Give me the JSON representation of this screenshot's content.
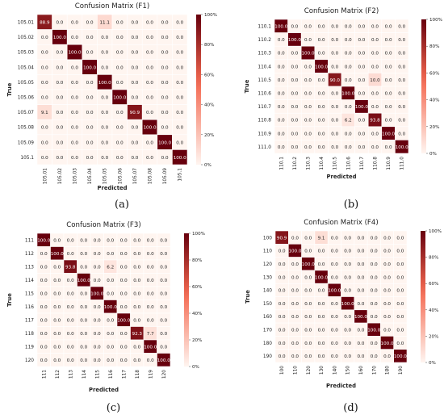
{
  "colors": {
    "low": "#fff5f0",
    "mid": "#f4684f",
    "high": "#67000d",
    "text_dark": "#222222",
    "text_light": "#ffffff"
  },
  "chart_data": [
    {
      "type": "heatmap",
      "title": "Confusion Matrix (F1)",
      "xlabel": "Predicted",
      "ylabel": "True",
      "panel_label": "(a)",
      "rows": [
        "105.01",
        "105.02",
        "105.03",
        "105.04",
        "105.05",
        "105.06",
        "105.07",
        "105.08",
        "105.09",
        "105.1"
      ],
      "cols": [
        "105.01",
        "105.02",
        "105.03",
        "105.04",
        "105.05",
        "105.06",
        "105.07",
        "105.08",
        "105.09",
        "105.1"
      ],
      "colorbar_ticks": [
        "0%",
        "20%",
        "40%",
        "60%",
        "80%",
        "100%"
      ],
      "vmin": 0,
      "vmax": 100,
      "values": [
        [
          88.9,
          0,
          0,
          0,
          11.1,
          0,
          0,
          0,
          0,
          0
        ],
        [
          0,
          100,
          0,
          0,
          0,
          0,
          0,
          0,
          0,
          0
        ],
        [
          0,
          0,
          100,
          0,
          0,
          0,
          0,
          0,
          0,
          0
        ],
        [
          0,
          0,
          0,
          100,
          0,
          0,
          0,
          0,
          0,
          0
        ],
        [
          0,
          0,
          0,
          0,
          100,
          0,
          0,
          0,
          0,
          0
        ],
        [
          0,
          0,
          0,
          0,
          0,
          100,
          0,
          0,
          0,
          0
        ],
        [
          9.1,
          0,
          0,
          0,
          0,
          0,
          90.9,
          0,
          0,
          0
        ],
        [
          0,
          0,
          0,
          0,
          0,
          0,
          0,
          100,
          0,
          0
        ],
        [
          0,
          0,
          0,
          0,
          0,
          0,
          0,
          0,
          100,
          0
        ],
        [
          0,
          0,
          0,
          0,
          0,
          0,
          0,
          0,
          0,
          100
        ]
      ]
    },
    {
      "type": "heatmap",
      "title": "Confusion Matrix (F2)",
      "xlabel": "Predicted",
      "ylabel": "True",
      "panel_label": "(b)",
      "rows": [
        "110.1",
        "110.2",
        "110.3",
        "110.4",
        "110.5",
        "110.6",
        "110.7",
        "110.8",
        "110.9",
        "111.0"
      ],
      "cols": [
        "110.1",
        "110.2",
        "110.3",
        "110.4",
        "110.5",
        "110.6",
        "110.7",
        "110.8",
        "110.9",
        "111.0"
      ],
      "colorbar_ticks": [
        "0%",
        "20%",
        "40%",
        "60%",
        "80%",
        "100%"
      ],
      "vmin": 0,
      "vmax": 100,
      "values": [
        [
          100,
          0,
          0,
          0,
          0,
          0,
          0,
          0,
          0,
          0
        ],
        [
          0,
          100,
          0,
          0,
          0,
          0,
          0,
          0,
          0,
          0
        ],
        [
          0,
          0,
          100,
          0,
          0,
          0,
          0,
          0,
          0,
          0
        ],
        [
          0,
          0,
          0,
          100,
          0,
          0,
          0,
          0,
          0,
          0
        ],
        [
          0,
          0,
          0,
          0,
          90,
          0,
          0,
          10,
          0,
          0
        ],
        [
          0,
          0,
          0,
          0,
          0,
          100,
          0,
          0,
          0,
          0
        ],
        [
          0,
          0,
          0,
          0,
          0,
          0,
          100,
          0,
          0,
          0
        ],
        [
          0,
          0,
          0,
          0,
          0,
          6.2,
          0,
          93.8,
          0,
          0
        ],
        [
          0,
          0,
          0,
          0,
          0,
          0,
          0,
          0,
          100,
          0
        ],
        [
          0,
          0,
          0,
          0,
          0,
          0,
          0,
          0,
          0,
          100
        ]
      ]
    },
    {
      "type": "heatmap",
      "title": "Confusion Matrix (F3)",
      "xlabel": "Predicted",
      "ylabel": "True",
      "panel_label": "(c)",
      "rows": [
        "111",
        "112",
        "113",
        "114",
        "115",
        "116",
        "117",
        "118",
        "119",
        "120"
      ],
      "cols": [
        "111",
        "112",
        "113",
        "114",
        "115",
        "116",
        "117",
        "118",
        "119",
        "120"
      ],
      "colorbar_ticks": [
        "0%",
        "20%",
        "40%",
        "60%",
        "80%",
        "100%"
      ],
      "vmin": 0,
      "vmax": 100,
      "values": [
        [
          100,
          0,
          0,
          0,
          0,
          0,
          0,
          0,
          0,
          0
        ],
        [
          0,
          100,
          0,
          0,
          0,
          0,
          0,
          0,
          0,
          0
        ],
        [
          0,
          0,
          93.8,
          0,
          0,
          6.2,
          0,
          0,
          0,
          0
        ],
        [
          0,
          0,
          0,
          100,
          0,
          0,
          0,
          0,
          0,
          0
        ],
        [
          0,
          0,
          0,
          0,
          100,
          0,
          0,
          0,
          0,
          0
        ],
        [
          0,
          0,
          0,
          0,
          0,
          100,
          0,
          0,
          0,
          0
        ],
        [
          0,
          0,
          0,
          0,
          0,
          0,
          100,
          0,
          0,
          0
        ],
        [
          0,
          0,
          0,
          0,
          0,
          0,
          0,
          92.3,
          7.7,
          0
        ],
        [
          0,
          0,
          0,
          0,
          0,
          0,
          0,
          0,
          100,
          0
        ],
        [
          0,
          0,
          0,
          0,
          0,
          0,
          0,
          0,
          0,
          100
        ]
      ]
    },
    {
      "type": "heatmap",
      "title": "Confusion Matrix (F4)",
      "xlabel": "Predicted",
      "ylabel": "True",
      "panel_label": "(d)",
      "rows": [
        "100",
        "110",
        "120",
        "130",
        "140",
        "150",
        "160",
        "170",
        "180",
        "190"
      ],
      "cols": [
        "100",
        "110",
        "120",
        "130",
        "140",
        "150",
        "160",
        "170",
        "180",
        "190"
      ],
      "colorbar_ticks": [
        "0%",
        "20%",
        "40%",
        "60%",
        "80%",
        "100%"
      ],
      "vmin": 0,
      "vmax": 100,
      "values": [
        [
          90.9,
          0,
          0,
          9.1,
          0,
          0,
          0,
          0,
          0,
          0
        ],
        [
          0,
          100,
          0,
          0,
          0,
          0,
          0,
          0,
          0,
          0
        ],
        [
          0,
          0,
          100,
          0,
          0,
          0,
          0,
          0,
          0,
          0
        ],
        [
          0,
          0,
          0,
          100,
          0,
          0,
          0,
          0,
          0,
          0
        ],
        [
          0,
          0,
          0,
          0,
          100,
          0,
          0,
          0,
          0,
          0
        ],
        [
          0,
          0,
          0,
          0,
          0,
          100,
          0,
          0,
          0,
          0
        ],
        [
          0,
          0,
          0,
          0,
          0,
          0,
          100,
          0,
          0,
          0
        ],
        [
          0,
          0,
          0,
          0,
          0,
          0,
          0,
          100,
          0,
          0
        ],
        [
          0,
          0,
          0,
          0,
          0,
          0,
          0,
          0,
          100,
          0
        ],
        [
          0,
          0,
          0,
          0,
          0,
          0,
          0,
          0,
          0,
          100
        ]
      ]
    }
  ]
}
